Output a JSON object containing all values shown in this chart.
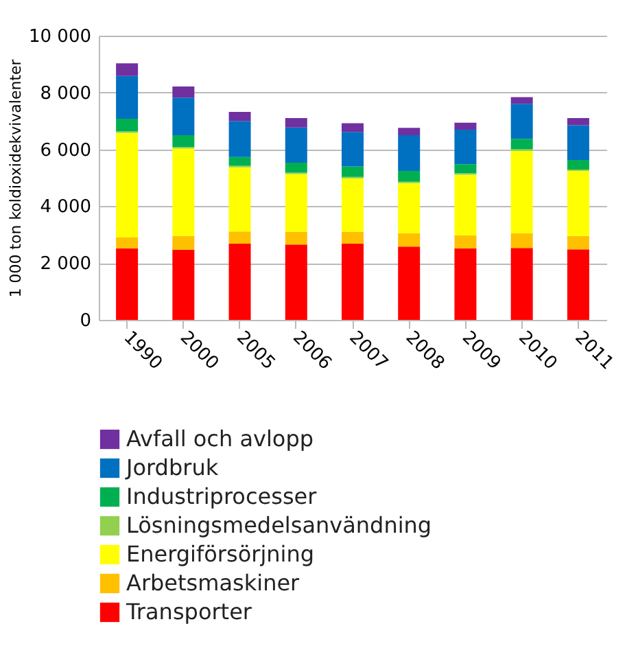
{
  "chart_data": {
    "type": "bar",
    "stacked": true,
    "ylabel": "1 000 ton koldioxidekvivalenter",
    "categories": [
      "1990",
      "2000",
      "2005",
      "2006",
      "2007",
      "2008",
      "2009",
      "2010",
      "2011"
    ],
    "series": [
      {
        "name": "Transporter",
        "color": "#ff0000",
        "values": [
          2520,
          2470,
          2680,
          2650,
          2680,
          2580,
          2520,
          2530,
          2480
        ]
      },
      {
        "name": "Arbetsmaskiner",
        "color": "#ffc000",
        "values": [
          380,
          480,
          430,
          450,
          420,
          470,
          460,
          520,
          470
        ]
      },
      {
        "name": "Energiförsörjning",
        "color": "#ffff00",
        "values": [
          3680,
          3080,
          2260,
          2030,
          1880,
          1760,
          2130,
          2900,
          2290
        ]
      },
      {
        "name": "Lösningsmedelsanvändning",
        "color": "#92d050",
        "values": [
          50,
          50,
          50,
          50,
          50,
          50,
          50,
          50,
          50
        ]
      },
      {
        "name": "Industriprocesser",
        "color": "#00b050",
        "values": [
          450,
          420,
          310,
          350,
          370,
          380,
          320,
          370,
          340
        ]
      },
      {
        "name": "Jordbruk",
        "color": "#0070c0",
        "values": [
          1500,
          1320,
          1270,
          1240,
          1210,
          1260,
          1210,
          1230,
          1220
        ]
      },
      {
        "name": "Avfall och avlopp",
        "color": "#7030a0",
        "values": [
          450,
          390,
          320,
          330,
          310,
          260,
          250,
          240,
          250
        ]
      }
    ],
    "ylim": [
      0,
      10000
    ],
    "yticks": [
      {
        "value": 0,
        "label": "0"
      },
      {
        "value": 2000,
        "label": "2 000"
      },
      {
        "value": 4000,
        "label": "4 000"
      },
      {
        "value": 6000,
        "label": "6 000"
      },
      {
        "value": 8000,
        "label": "8 000"
      },
      {
        "value": 10000,
        "label": "10 000"
      }
    ],
    "grid": "y",
    "legend": "bottom"
  }
}
